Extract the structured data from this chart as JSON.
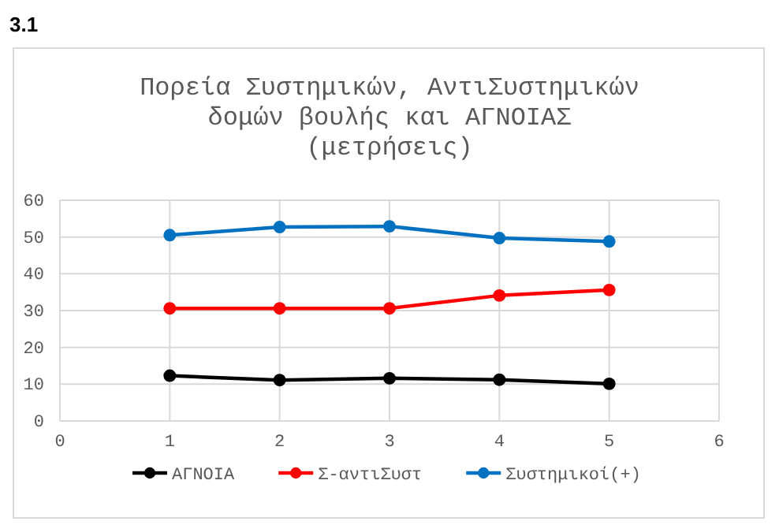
{
  "chart_data": {
    "type": "line",
    "title": "Πορεία Συστημικών, ΑντιΣυστημικών δομών βουλής και ΑΓΝΟΙΑΣ (μετρήσεις)",
    "annotations": [
      "3.1"
    ],
    "x": [
      1,
      2,
      3,
      4,
      5
    ],
    "xlim": [
      0,
      6
    ],
    "xticks": [
      0,
      1,
      2,
      3,
      4,
      5,
      6
    ],
    "ylim": [
      0,
      60
    ],
    "yticks": [
      0,
      10,
      20,
      30,
      40,
      50,
      60
    ],
    "grid": true,
    "legend": "bottom",
    "marker": "circle",
    "line_style": "solid",
    "series": [
      {
        "name": "ΑΓΝΟΙΑ",
        "color": "#000000",
        "values": [
          12.3,
          11.1,
          11.6,
          11.2,
          10.1
        ]
      },
      {
        "name": "Σ-αντιΣυστ",
        "color": "#ff0000",
        "values": [
          30.6,
          30.6,
          30.6,
          34.1,
          35.6
        ]
      },
      {
        "name": "Συστημικοί(+)",
        "color": "#0070c0",
        "values": [
          50.5,
          52.7,
          52.9,
          49.7,
          48.8
        ]
      }
    ]
  }
}
